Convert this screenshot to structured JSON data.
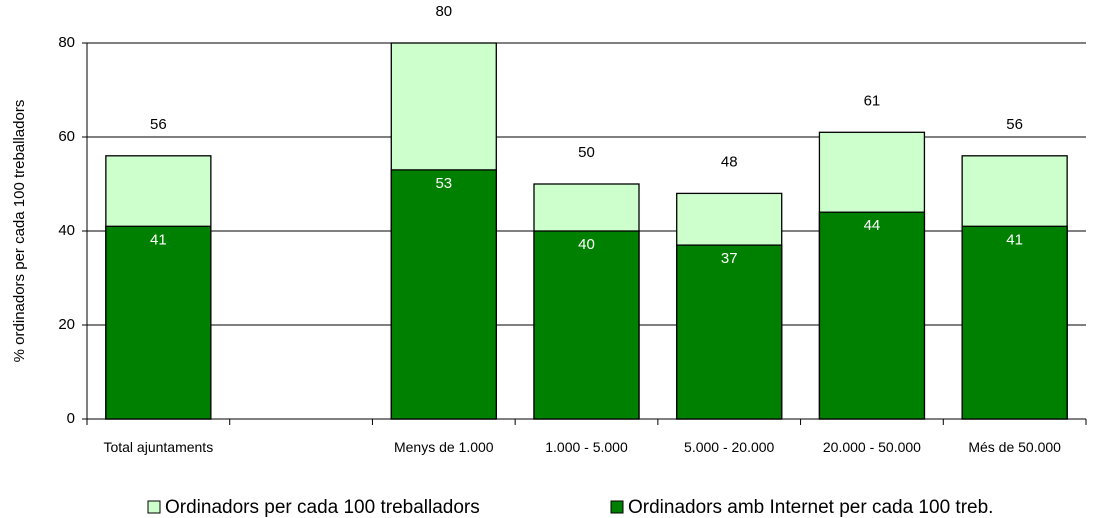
{
  "chart_data": {
    "type": "overlap_bar",
    "y_label": "% ordinadors per cada 100 treballadors",
    "categories": [
      "Total ajuntaments",
      null,
      "Menys de 1.000",
      "1.000 - 5.000",
      "5.000 - 20.000",
      "20.000 - 50.000",
      "Més de 50.000"
    ],
    "series": [
      {
        "name": "Ordinadors per cada 100 treballadors",
        "color": "#ccffcc",
        "values": [
          56,
          null,
          80,
          50,
          48,
          61,
          56
        ]
      },
      {
        "name": "Ordinadors amb Internet per cada 100 treb.",
        "color": "#008000",
        "values": [
          41,
          null,
          53,
          40,
          37,
          44,
          41
        ]
      }
    ],
    "ylim": [
      0,
      80
    ],
    "yticks": [
      0,
      20,
      40,
      60,
      80
    ],
    "grid": true,
    "legend": "bottom"
  }
}
